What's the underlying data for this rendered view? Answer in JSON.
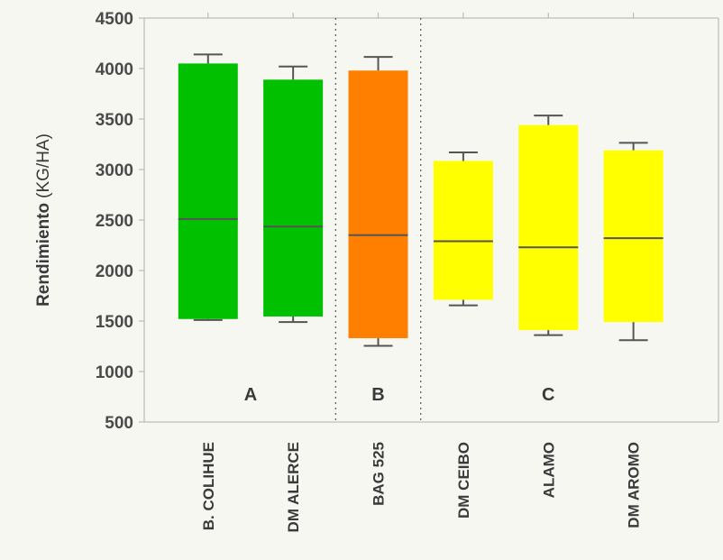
{
  "chart_data": {
    "type": "box",
    "ylabel_main": "Rendimiento",
    "ylabel_unit": "(KG/HA)",
    "ylim": [
      500,
      4500
    ],
    "yticks": [
      "500",
      "1000",
      "1500",
      "2000",
      "2500",
      "3000",
      "3500",
      "4000",
      "4500"
    ],
    "categories": [
      "B. COLIHUE",
      "DM ALERCE",
      "BAG 525",
      "DM CEIBO",
      "ALAMO",
      "DM AROMO"
    ],
    "boxes": [
      {
        "name": "B. COLIHUE",
        "min": 1510,
        "q1": 1520,
        "median": 2510,
        "q3": 4050,
        "max": 4140,
        "color": "#00c000"
      },
      {
        "name": "DM ALERCE",
        "min": 1490,
        "q1": 1545,
        "median": 2435,
        "q3": 3890,
        "max": 4020,
        "color": "#00c000"
      },
      {
        "name": "BAG 525",
        "min": 1255,
        "q1": 1330,
        "median": 2350,
        "q3": 3980,
        "max": 4115,
        "color": "#ff8000"
      },
      {
        "name": "DM CEIBO",
        "min": 1655,
        "q1": 1710,
        "median": 2290,
        "q3": 3085,
        "max": 3170,
        "color": "#ffff00"
      },
      {
        "name": "ALAMO",
        "min": 1360,
        "q1": 1410,
        "median": 2230,
        "q3": 3440,
        "max": 3535,
        "color": "#ffff00"
      },
      {
        "name": "DM AROMO",
        "min": 1310,
        "q1": 1490,
        "median": 2320,
        "q3": 3190,
        "max": 3265,
        "color": "#ffff00"
      }
    ],
    "groups": [
      {
        "label": "A",
        "from": 0,
        "to": 1
      },
      {
        "label": "B",
        "from": 2,
        "to": 2
      },
      {
        "label": "C",
        "from": 3,
        "to": 5
      }
    ],
    "colors": {
      "background": "#f7f7f2",
      "axis": "#bbbbbb",
      "whisker": "#555555",
      "median": "#555555",
      "separator": "#555555"
    }
  }
}
